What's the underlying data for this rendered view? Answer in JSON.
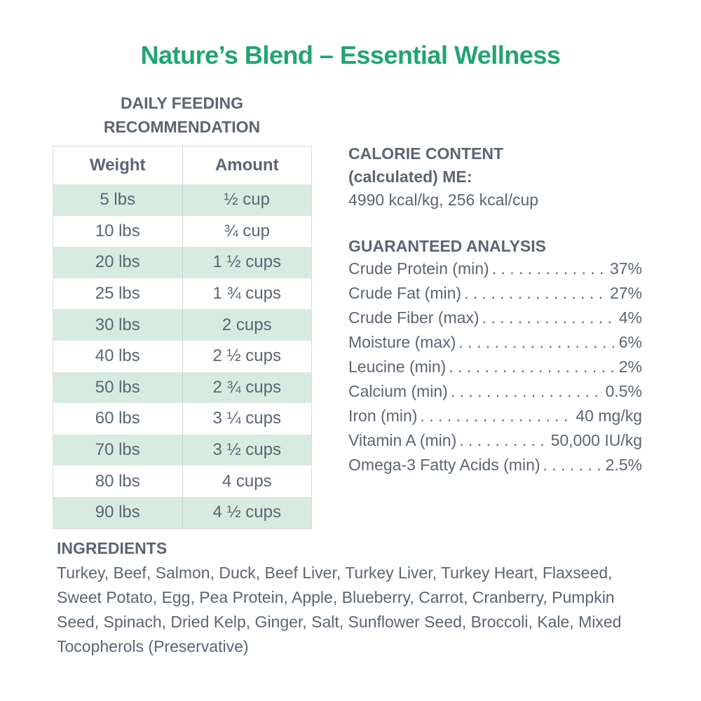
{
  "title": "Nature’s Blend – Essential Wellness",
  "feeding": {
    "heading": "DAILY FEEDING RECOMMENDATION",
    "columns": [
      "Weight",
      "Amount"
    ],
    "rows": [
      [
        "5 lbs",
        "½ cup"
      ],
      [
        "10 lbs",
        "¾ cup"
      ],
      [
        "20 lbs",
        "1 ½ cups"
      ],
      [
        "25 lbs",
        "1 ¾ cups"
      ],
      [
        "30 lbs",
        "2 cups"
      ],
      [
        "40 lbs",
        "2 ½ cups"
      ],
      [
        "50 lbs",
        "2 ¾ cups"
      ],
      [
        "60 lbs",
        "3 ¼ cups"
      ],
      [
        "70 lbs",
        "3 ½ cups"
      ],
      [
        "80 lbs",
        "4 cups"
      ],
      [
        "90 lbs",
        "4 ½ cups"
      ]
    ]
  },
  "calorie": {
    "heading_1": "CALORIE CONTENT",
    "heading_2": "(calculated) ME:",
    "value": "4990 kcal/kg, 256 kcal/cup"
  },
  "analysis": {
    "heading": "GUARANTEED ANALYSIS",
    "items": [
      {
        "label": "Crude Protein (min)",
        "value": "37%"
      },
      {
        "label": "Crude Fat (min)",
        "value": "27%"
      },
      {
        "label": "Crude Fiber (max)",
        "value": "4%"
      },
      {
        "label": "Moisture (max)",
        "value": "6%"
      },
      {
        "label": "Leucine (min)",
        "value": "2%"
      },
      {
        "label": "Calcium (min)",
        "value": "0.5%"
      },
      {
        "label": "Iron (min)",
        "value": "40 mg/kg"
      },
      {
        "label": "Vitamin A (min)",
        "value": "50,000 IU/kg"
      },
      {
        "label": "Omega-3 Fatty Acids (min)",
        "value": "2.5%"
      }
    ]
  },
  "ingredients": {
    "heading": "INGREDIENTS",
    "text": "Turkey, Beef, Salmon, Duck, Beef Liver, Turkey Liver, Turkey Heart, Flaxseed, Sweet Potato, Egg, Pea Protein, Apple, Blueberry, Carrot, Cranberry, Pumpkin Seed, Spinach, Dried Kelp, Ginger, Salt, Sunflower Seed, Broccoli, Kale, Mixed Tocopherols (Preservative)"
  },
  "colors": {
    "brand_green": "#1fa572",
    "stripe": "#d8ebe1",
    "text": "#5b6573"
  }
}
